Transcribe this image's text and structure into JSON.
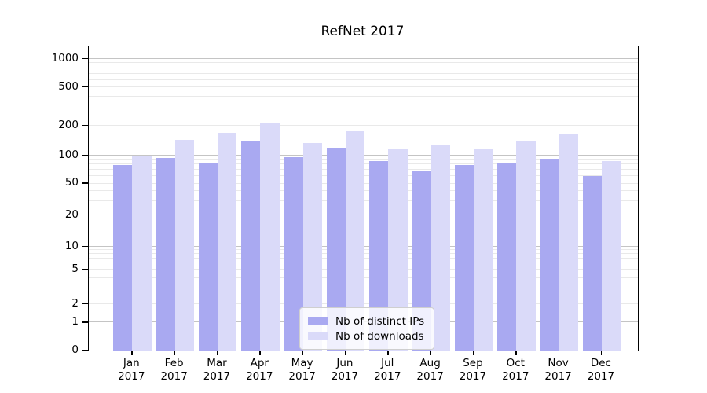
{
  "title": "RefNet 2017",
  "chart_data": {
    "type": "bar",
    "title": "RefNet 2017",
    "categories": [
      "Jan",
      "Feb",
      "Mar",
      "Apr",
      "May",
      "Jun",
      "Jul",
      "Aug",
      "Sep",
      "Oct",
      "Nov",
      "Dec"
    ],
    "category_year": "2017",
    "series": [
      {
        "name": "Nb of distinct IPs",
        "color": "#a9a9f1",
        "values": [
          79,
          94,
          84,
          140,
          96,
          120,
          88,
          69,
          79,
          84,
          92,
          60
        ]
      },
      {
        "name": "Nb of downloads",
        "color": "#dadaf9",
        "values": [
          98,
          145,
          170,
          215,
          133,
          175,
          116,
          127,
          115,
          139,
          164,
          88
        ]
      }
    ],
    "xlabel": "",
    "ylabel": "",
    "yscale": "symlog",
    "yticks": [
      0,
      1,
      2,
      5,
      10,
      20,
      50,
      100,
      200,
      500,
      1000
    ],
    "ylim": [
      0,
      2200
    ],
    "grid": "both",
    "legend_position": "lower center"
  }
}
